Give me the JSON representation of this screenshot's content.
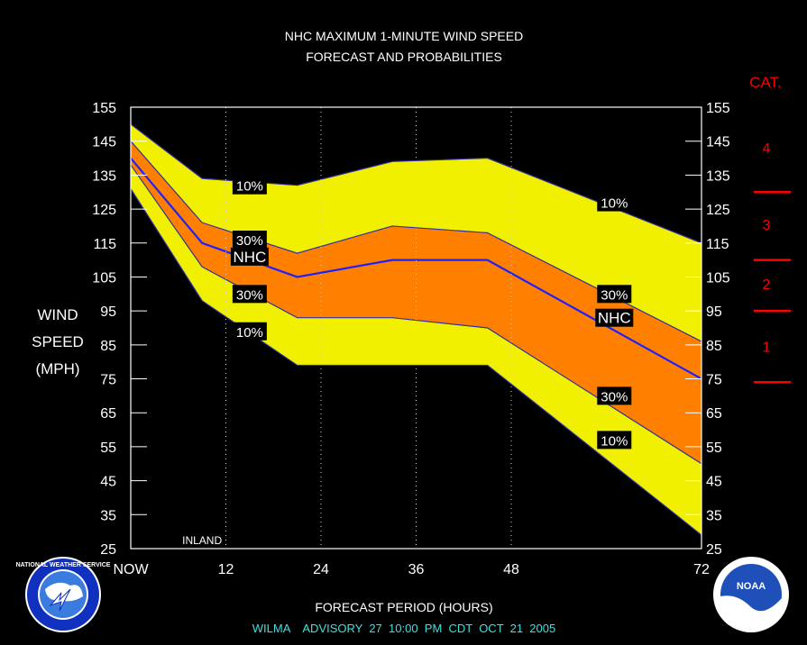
{
  "chart_data": {
    "type": "area",
    "title": "NHC MAXIMUM 1-MINUTE WIND SPEED",
    "subtitle": "FORECAST AND PROBABILITIES",
    "ylabel": [
      "WIND",
      "SPEED",
      "(MPH)"
    ],
    "xlabel": "FORECAST PERIOD (HOURS)",
    "footer": "WILMA    ADVISORY  27  10:00  PM  CDT  OCT  21  2005",
    "x_ticks": [
      {
        "value": 0,
        "label": "NOW"
      },
      {
        "value": 12,
        "label": "12"
      },
      {
        "value": 24,
        "label": "24"
      },
      {
        "value": 36,
        "label": "36"
      },
      {
        "value": 48,
        "label": "48"
      },
      {
        "value": 72,
        "label": "72"
      }
    ],
    "xlim": [
      0,
      72
    ],
    "ylim": [
      25,
      155
    ],
    "y_ticks": [
      25,
      35,
      45,
      55,
      65,
      75,
      85,
      95,
      105,
      115,
      125,
      135,
      145,
      155
    ],
    "vertical_gridlines": [
      12,
      24,
      36,
      48
    ],
    "annotation": {
      "label": "INLAND",
      "x": 9
    },
    "x": [
      0,
      9,
      21,
      33,
      45,
      72
    ],
    "series": [
      {
        "name": "10%",
        "role": "outer-upper",
        "values": [
          150,
          134,
          132,
          139,
          140,
          115
        ]
      },
      {
        "name": "30%",
        "role": "inner-upper",
        "values": [
          145,
          121,
          112,
          120,
          118,
          86
        ]
      },
      {
        "name": "NHC",
        "role": "forecast",
        "values": [
          140,
          115,
          105,
          110,
          110,
          75
        ]
      },
      {
        "name": "30%",
        "role": "inner-lower",
        "values": [
          138,
          108,
          93,
          93,
          90,
          50
        ]
      },
      {
        "name": "10%",
        "role": "outer-lower",
        "values": [
          131,
          98,
          79,
          79,
          79,
          29
        ]
      }
    ],
    "point_labels": [
      {
        "text": "10%",
        "x": 15,
        "y": 132
      },
      {
        "text": "30%",
        "x": 15,
        "y": 116
      },
      {
        "text": "NHC",
        "x": 15,
        "y": 111
      },
      {
        "text": "30%",
        "x": 15,
        "y": 100
      },
      {
        "text": "10%",
        "x": 15,
        "y": 89
      },
      {
        "text": "10%",
        "x": 61,
        "y": 127
      },
      {
        "text": "30%",
        "x": 61,
        "y": 100
      },
      {
        "text": "NHC",
        "x": 61,
        "y": 93
      },
      {
        "text": "30%",
        "x": 61,
        "y": 70
      },
      {
        "text": "10%",
        "x": 61,
        "y": 57
      }
    ],
    "categories_scale": {
      "title": "CAT.",
      "bands": [
        {
          "label": "1",
          "min": 74,
          "max": 95
        },
        {
          "label": "2",
          "min": 96,
          "max": 110
        },
        {
          "label": "3",
          "min": 111,
          "max": 130
        },
        {
          "label": "4",
          "min": 131,
          "max": 155
        }
      ],
      "boundaries": [
        74,
        95,
        110,
        130
      ]
    },
    "colors": {
      "background": "#000000",
      "outer_band": "#F0F000",
      "inner_band": "#FF8000",
      "forecast_line": "#2020FF",
      "band_edge": "#3030A0",
      "text": "#FFFFFF",
      "category": "#FF0000",
      "footer": "#40E0E0",
      "label_box": "#000000"
    }
  },
  "logos": {
    "left": {
      "icon": "nws-logo",
      "lettering": "NATIONAL WEATHER SERVICE"
    },
    "right": {
      "icon": "noaa-logo",
      "lettering": "NOAA"
    }
  }
}
